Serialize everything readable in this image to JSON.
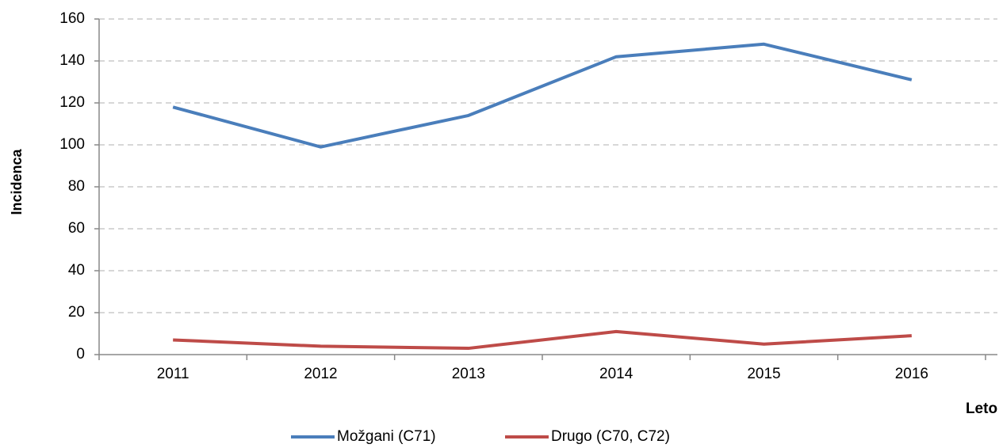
{
  "chart_data": {
    "type": "line",
    "x_label": "Leto",
    "y_label": "Incidenca",
    "categories": [
      "2011",
      "2012",
      "2013",
      "2014",
      "2015",
      "2016"
    ],
    "series": [
      {
        "name": "Možgani (C71)",
        "color": "#4a7ebb",
        "values": [
          118,
          99,
          114,
          142,
          148,
          131
        ]
      },
      {
        "name": "Drugo (C70, C72)",
        "color": "#be4b48",
        "values": [
          7,
          4,
          3,
          11,
          5,
          9
        ]
      }
    ],
    "ylim": [
      0,
      160
    ],
    "yticks": [
      0,
      20,
      40,
      60,
      80,
      100,
      120,
      140,
      160
    ],
    "grid": true,
    "legend": "bottom"
  }
}
